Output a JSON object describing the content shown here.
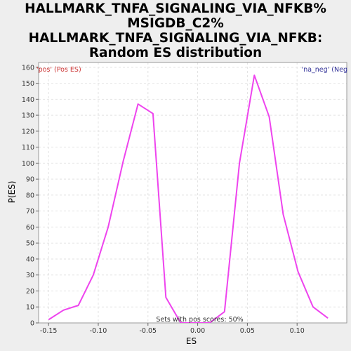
{
  "chart_data": {
    "type": "line",
    "title_lines": [
      "HALLMARK_TNFA_SIGNALING_VIA_NFKB%",
      "MSIGDB_C2%",
      "HALLMARK_TNFA_SIGNALING_VIA_NFKB:",
      "Random ES distribution"
    ],
    "xlabel": "ES",
    "ylabel": "P(ES)",
    "xlim": [
      -0.16,
      0.15
    ],
    "ylim": [
      0,
      163
    ],
    "xticks": [
      -0.15,
      -0.1,
      -0.05,
      0.0,
      0.05,
      0.1
    ],
    "xtick_labels": [
      "-0.15",
      "-0.10",
      "-0.05",
      "0.00",
      "0.05",
      "0.10"
    ],
    "yticks": [
      0,
      10,
      20,
      30,
      40,
      50,
      60,
      70,
      80,
      90,
      100,
      110,
      120,
      130,
      140,
      150,
      160
    ],
    "grid": true,
    "series": [
      {
        "color": "#ee44ee",
        "x": [
          -0.15,
          -0.135,
          -0.12,
          -0.105,
          -0.09,
          -0.075,
          -0.06,
          -0.045,
          -0.032,
          -0.017,
          -0.002,
          0.012,
          0.027,
          0.042,
          0.057,
          0.072,
          0.086,
          0.101,
          0.116,
          0.131
        ],
        "y": [
          2,
          8,
          11,
          30,
          60,
          101,
          137,
          131,
          16,
          0,
          0,
          0,
          7,
          100,
          155,
          129,
          68,
          32,
          10,
          3
        ]
      }
    ],
    "annotations": {
      "left_label": "'pos' (Pos ES)",
      "right_label": "'na_neg' (Neg",
      "bottom_note": "Sets with pos scores: 50%"
    },
    "colors": {
      "left_label": "#cc3333",
      "right_label": "#333399",
      "line": "#ee44ee"
    }
  }
}
